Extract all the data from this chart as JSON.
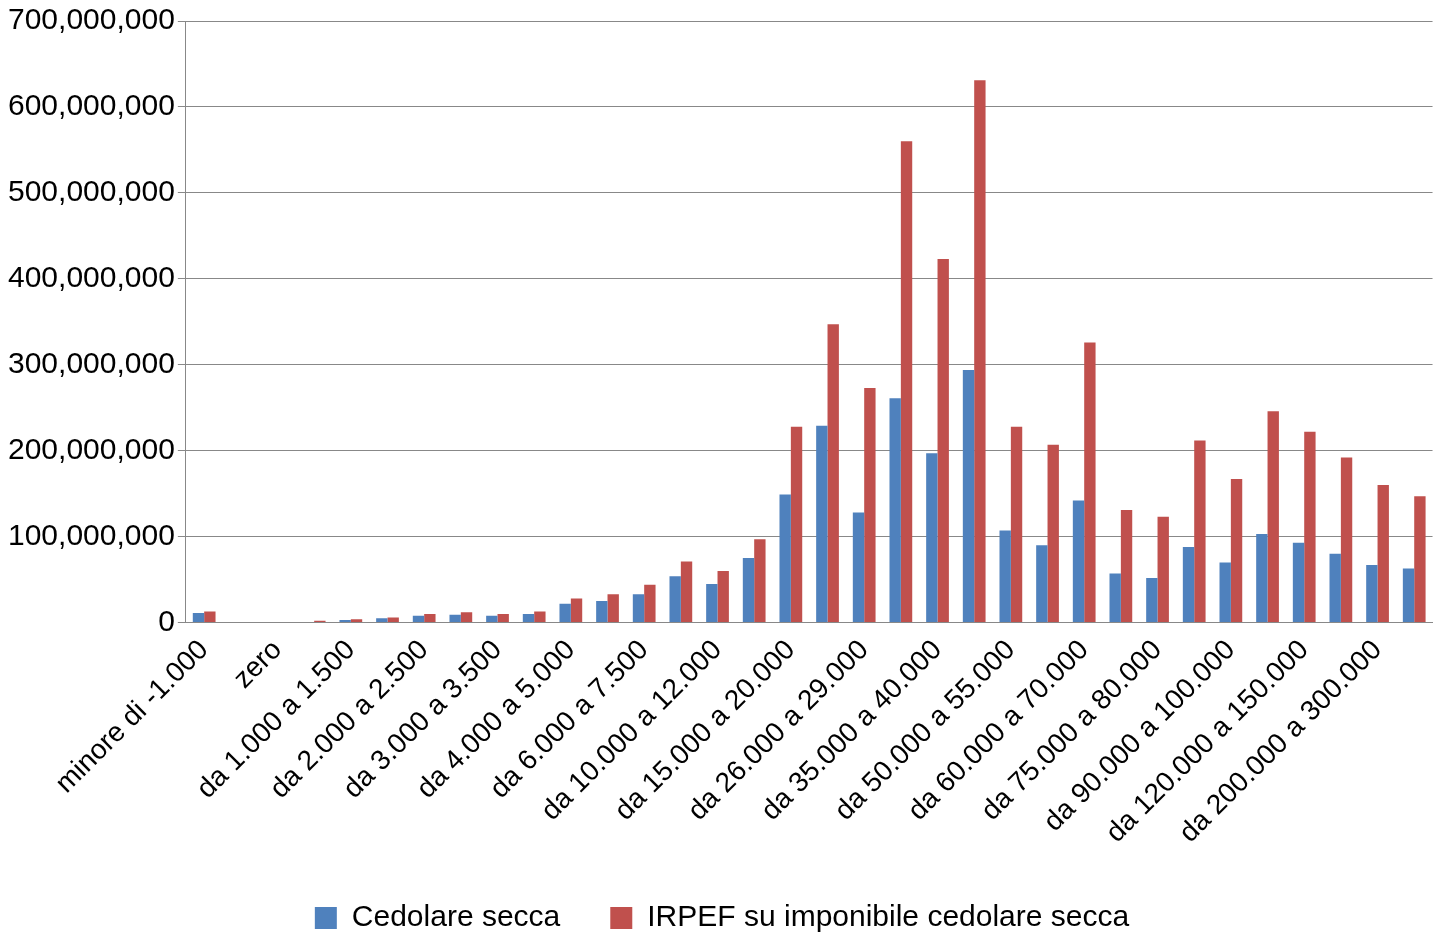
{
  "chart_data": {
    "type": "bar",
    "categories": [
      "minore di -1.000",
      null,
      "zero",
      null,
      "da 1.000 a 1.500",
      null,
      "da 2.000 a 2.500",
      null,
      "da 3.000 a 3.500",
      null,
      "da 4.000 a 5.000",
      null,
      "da 6.000 a 7.500",
      null,
      "da 10.000 a 12.000",
      null,
      "da 15.000 a 20.000",
      null,
      "da 26.000 a 29.000",
      null,
      "da 35.000 a 40.000",
      null,
      "da 50.000 a 55.000",
      null,
      "da 60.000 a 70.000",
      null,
      "da 75.000 a 80.000",
      null,
      "da 90.000 a 100.000",
      null,
      "da 120.000 a 150.000",
      null,
      "da 200.000 a 300.000",
      null
    ],
    "series": [
      {
        "name": "Cedolare secca",
        "color": "#4f81bd",
        "values": [
          11000000,
          0,
          0,
          null,
          3000000,
          5000000,
          8000000,
          9000000,
          8000000,
          10000000,
          22000000,
          25000000,
          33000000,
          54000000,
          45000000,
          75000000,
          149000000,
          229000000,
          128000000,
          261000000,
          197000000,
          294000000,
          107000000,
          90000000,
          142000000,
          57000000,
          52000000,
          88000000,
          70000000,
          103000000,
          93000000,
          80000000,
          67000000,
          63000000
        ]
      },
      {
        "name": "IRPEF su imponibile cedolare secca",
        "color": "#c0504d",
        "values": [
          13000000,
          0,
          0,
          2000000,
          4000000,
          6000000,
          10000000,
          12000000,
          10000000,
          13000000,
          28000000,
          33000000,
          44000000,
          71000000,
          60000000,
          97000000,
          228000000,
          347000000,
          273000000,
          560000000,
          423000000,
          631000000,
          228000000,
          207000000,
          326000000,
          131000000,
          123000000,
          212000000,
          167000000,
          246000000,
          222000000,
          192000000,
          160000000,
          147000000
        ]
      }
    ],
    "ylim": [
      0,
      700000000
    ],
    "yticks": [
      {
        "value": 0,
        "label": "0"
      },
      {
        "value": 100000000,
        "label": "100,000,000"
      },
      {
        "value": 200000000,
        "label": "200,000,000"
      },
      {
        "value": 300000000,
        "label": "300,000,000"
      },
      {
        "value": 400000000,
        "label": "400,000,000"
      },
      {
        "value": 500000000,
        "label": "500,000,000"
      },
      {
        "value": 600000000,
        "label": "600,000,000"
      },
      {
        "value": 700000000,
        "label": "700,000,000"
      }
    ],
    "grid": "y",
    "legend": "bottom"
  }
}
